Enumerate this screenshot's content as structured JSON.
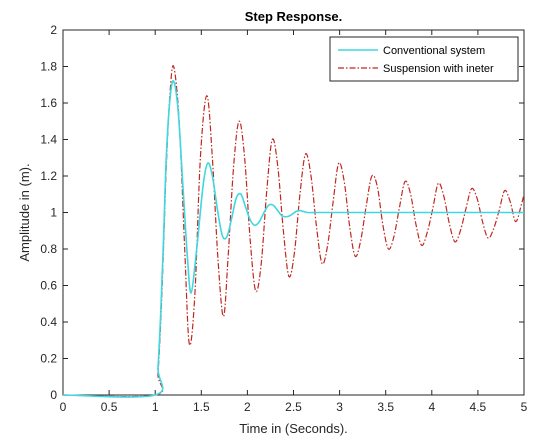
{
  "chart_data": {
    "type": "line",
    "title": "Step Response.",
    "xlabel": "Time in (Seconds).",
    "ylabel": "Amplitude in (m).",
    "xlim": [
      0,
      5
    ],
    "ylim": [
      0,
      2
    ],
    "x_ticks": [
      "0",
      "0.5",
      "1",
      "1.5",
      "2",
      "2.5",
      "3",
      "3.5",
      "4",
      "4.5",
      "5"
    ],
    "y_ticks": [
      "0",
      "0.2",
      "0.4",
      "0.6",
      "0.8",
      "1",
      "1.2",
      "1.4",
      "1.6",
      "1.8",
      "2"
    ],
    "grid": false,
    "legend_position": "top-right",
    "series": [
      {
        "name": "Conventional system",
        "color": "#3fd7e0",
        "line_style": "solid",
        "x": [
          0,
          1,
          1.03,
          1.06,
          1.09,
          1.12,
          1.16,
          1.2,
          1.25,
          1.3,
          1.35,
          1.39,
          1.45,
          1.52,
          1.57,
          1.62,
          1.68,
          1.73,
          1.78,
          1.83,
          1.88,
          1.93,
          1.98,
          2.03,
          2.08,
          2.13,
          2.18,
          2.23,
          2.28,
          2.33,
          2.38,
          2.45,
          2.55,
          2.65,
          2.75,
          2.9,
          3.1,
          3.4,
          3.8,
          4.3,
          5
        ],
        "y": [
          0,
          0,
          0.15,
          0.45,
          0.85,
          1.3,
          1.62,
          1.72,
          1.55,
          1.15,
          0.75,
          0.56,
          0.8,
          1.15,
          1.27,
          1.2,
          1.0,
          0.87,
          0.87,
          0.97,
          1.08,
          1.1,
          1.03,
          0.96,
          0.93,
          0.95,
          1.0,
          1.04,
          1.04,
          1.01,
          0.98,
          0.98,
          1.01,
          1.0,
          1.0,
          1.0,
          1.0,
          1.0,
          1.0,
          1.0,
          1.0
        ]
      },
      {
        "name": "Suspension with ineter",
        "color": "#c0281e",
        "line_style": "dashdot",
        "x": [
          0,
          1,
          1.03,
          1.06,
          1.09,
          1.12,
          1.16,
          1.2,
          1.26,
          1.32,
          1.37,
          1.43,
          1.49,
          1.56,
          1.62,
          1.68,
          1.74,
          1.79,
          1.85,
          1.91,
          1.97,
          2.03,
          2.09,
          2.15,
          2.21,
          2.27,
          2.33,
          2.39,
          2.45,
          2.51,
          2.57,
          2.63,
          2.69,
          2.75,
          2.81,
          2.87,
          2.93,
          2.99,
          3.05,
          3.11,
          3.17,
          3.23,
          3.29,
          3.35,
          3.41,
          3.47,
          3.53,
          3.59,
          3.65,
          3.71,
          3.77,
          3.83,
          3.89,
          3.95,
          4.01,
          4.07,
          4.13,
          4.19,
          4.25,
          4.31,
          4.37,
          4.43,
          4.49,
          4.55,
          4.61,
          4.67,
          4.73,
          4.79,
          4.85,
          4.91,
          4.97,
          5
        ],
        "y": [
          0,
          0,
          0.12,
          0.4,
          0.8,
          1.25,
          1.65,
          1.8,
          1.5,
          0.8,
          0.28,
          0.55,
          1.3,
          1.64,
          1.3,
          0.75,
          0.43,
          0.75,
          1.25,
          1.5,
          1.3,
          0.85,
          0.57,
          0.72,
          1.12,
          1.4,
          1.25,
          0.9,
          0.65,
          0.78,
          1.1,
          1.32,
          1.2,
          0.92,
          0.72,
          0.82,
          1.06,
          1.27,
          1.17,
          0.92,
          0.76,
          0.85,
          1.04,
          1.2,
          1.14,
          0.93,
          0.8,
          0.87,
          1.03,
          1.17,
          1.1,
          0.93,
          0.82,
          0.89,
          1.02,
          1.16,
          1.09,
          0.94,
          0.84,
          0.9,
          1.02,
          1.13,
          1.08,
          0.95,
          0.86,
          0.91,
          1.01,
          1.12,
          1.06,
          0.95,
          1.04,
          1.1
        ]
      }
    ]
  }
}
